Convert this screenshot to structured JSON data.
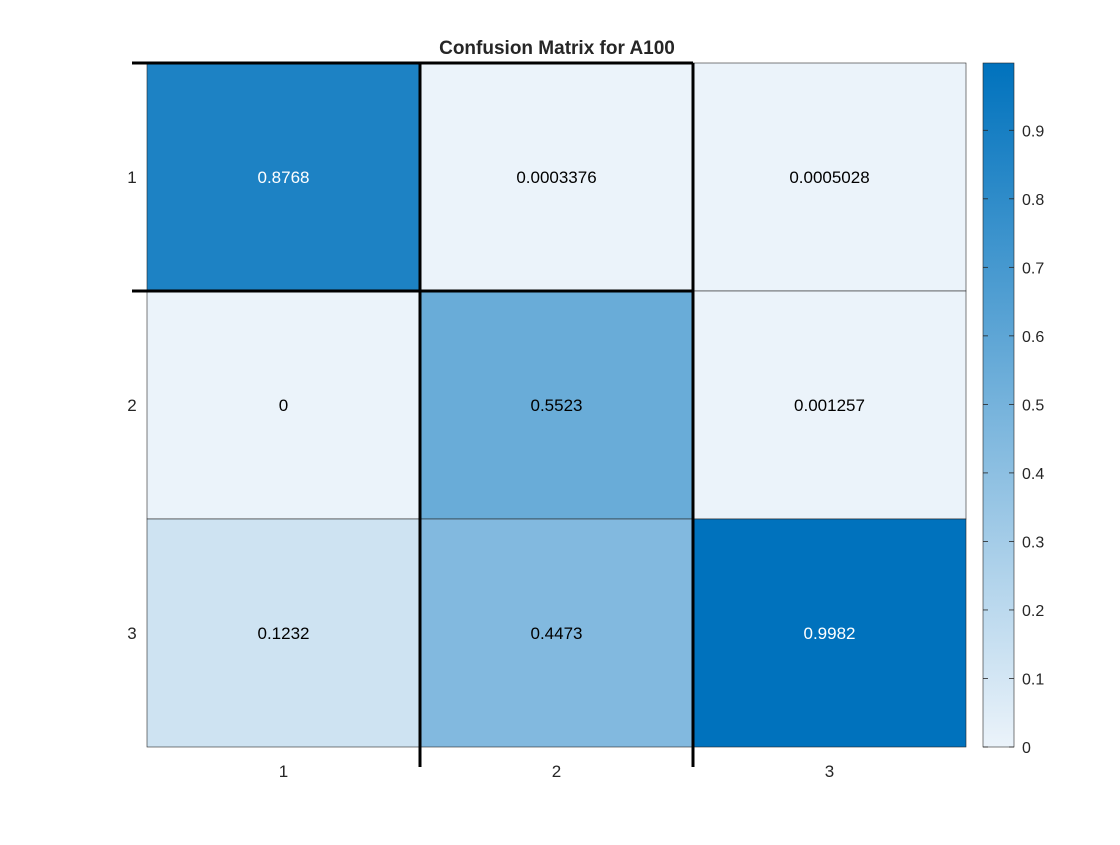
{
  "chart_data": {
    "type": "heatmap",
    "title": "Confusion Matrix for A100",
    "xlabel": "",
    "ylabel": "",
    "x_categories": [
      "1",
      "2",
      "3"
    ],
    "y_categories": [
      "1",
      "2",
      "3"
    ],
    "values": [
      [
        0.8768,
        0.0003376,
        0.0005028
      ],
      [
        0,
        0.5523,
        0.001257
      ],
      [
        0.1232,
        0.4473,
        0.9982
      ]
    ],
    "value_labels": [
      [
        "0.8768",
        "0.0003376",
        "0.0005028"
      ],
      [
        "0",
        "0.5523",
        "0.001257"
      ],
      [
        "0.1232",
        "0.4473",
        "0.9982"
      ]
    ],
    "colorbar": {
      "range": [
        0,
        0.9982
      ],
      "ticks": [
        "0",
        "0.1",
        "0.2",
        "0.3",
        "0.4",
        "0.5",
        "0.6",
        "0.7",
        "0.8",
        "0.9"
      ],
      "low_color": "#ebf3fa",
      "high_color": "#0072bd"
    },
    "highlight_color": "#000000"
  }
}
